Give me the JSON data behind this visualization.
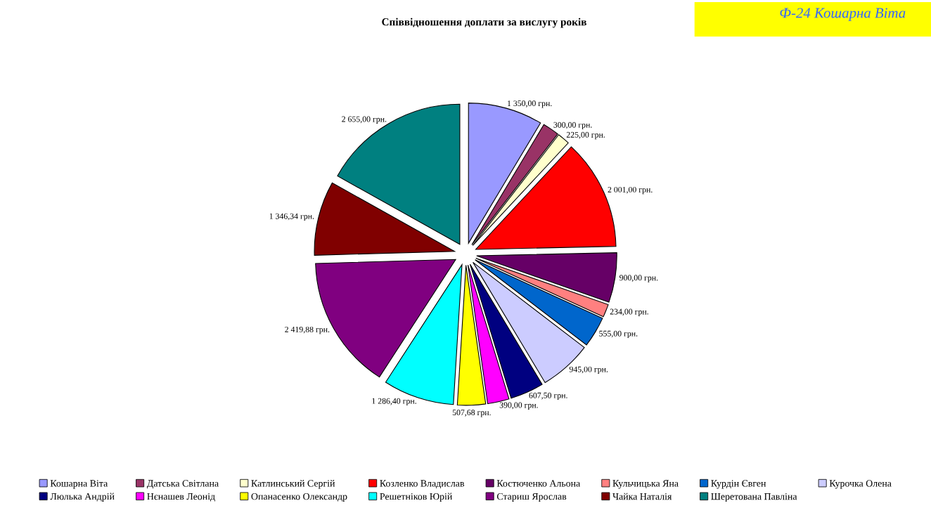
{
  "chart_data": {
    "type": "pie",
    "title": "Співвідношення доплати за вислугу років",
    "annotations": [
      "Ф-24 Кошарна Віта"
    ],
    "categories": [
      "Кошарна Віта",
      "Датська Світлана",
      "Катлинський Сергій",
      "Козленко Владислав",
      "Костюченко Альона",
      "Кульчицька Яна",
      "Курдін Євген",
      "Курочка Олена",
      "Люлька Андрій",
      "Нєнашев Леонід",
      "Опанасенко Олександр",
      "Решетніков Юрій",
      "Стариш Ярослав",
      "Чайка Наталія",
      "Шеретована Павліна"
    ],
    "values": [
      1350,
      300,
      225,
      2001,
      900,
      234,
      555,
      945,
      607.5,
      390,
      507.68,
      1286.4,
      2419.88,
      1346.34,
      2655
    ],
    "value_labels": [
      "1 350,00 грн.",
      "300,00 грн.",
      "225,00 грн.",
      "2 001,00 грн.",
      "900,00 грн.",
      "234,00 грн.",
      "555,00 грн.",
      "945,00 грн.",
      "607,50 грн.",
      "390,00 грн.",
      "507,68 грн.",
      "1 286,40 грн.",
      "2 419,88 грн.",
      "1 346,34 грн.",
      "2 655,00 грн."
    ],
    "colors": [
      "#9999ff",
      "#993366",
      "#ffffcc",
      "#ff0000",
      "#660066",
      "#ff8080",
      "#0066cc",
      "#ccccff",
      "#000080",
      "#ff00ff",
      "#ffff00",
      "#00ffff",
      "#800080",
      "#800000",
      "#008080"
    ],
    "legend": "bottom"
  }
}
